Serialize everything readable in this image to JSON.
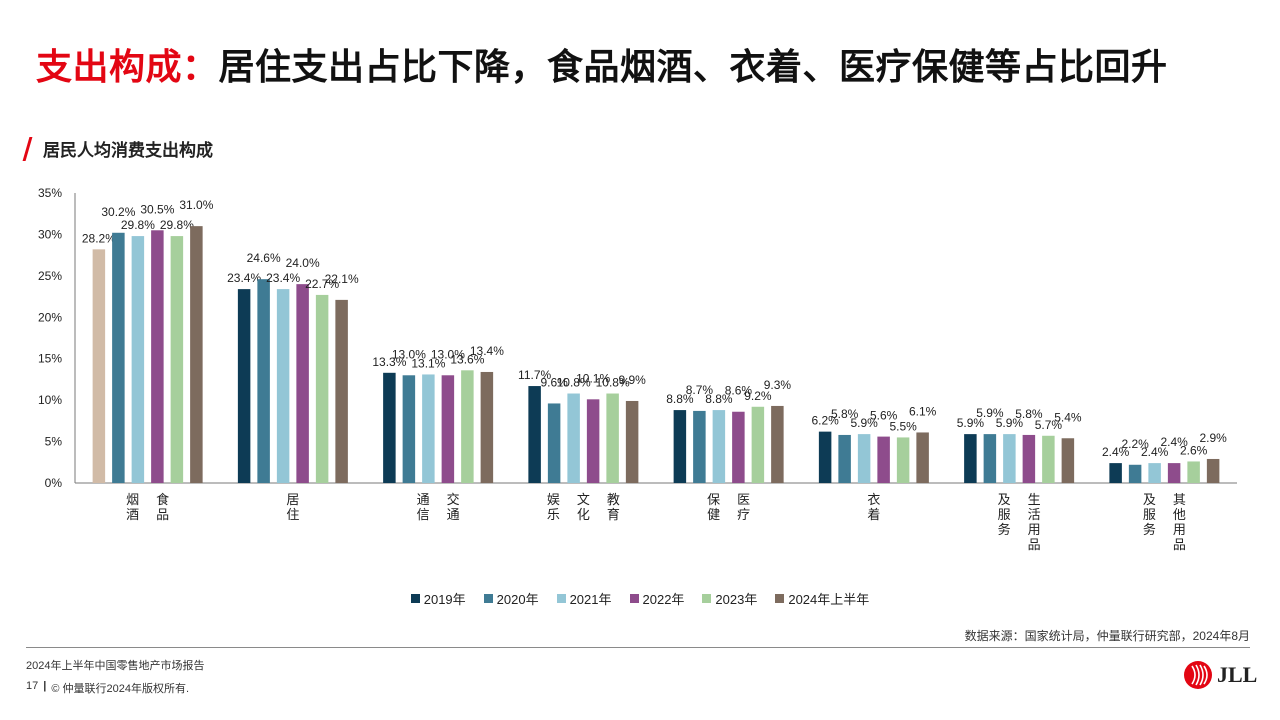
{
  "slide": {
    "title_highlight": "支出构成：",
    "title_rest": "居住支出占比下降，食品烟酒、衣着、医疗保健等占比回升",
    "chart_heading": "居民人均消费支出构成",
    "source": "数据来源：国家统计局，仲量联行研究部，2024年8月",
    "report_name": "2024年上半年中国零售地产市场报告",
    "page_number": "17",
    "separator": "|",
    "copyright": "© 仲量联行2024年版权所有.",
    "logo_text": "JLL"
  },
  "colors": {
    "title_accent": "#e30613",
    "series": [
      "#0d3b55",
      "#3f7b94",
      "#93c6d6",
      "#8e4c8c",
      "#a6cf9c",
      "#7d6b5e"
    ],
    "first_bar_food": "#d1bba7"
  },
  "chart_data": {
    "type": "bar",
    "title": "居民人均消费支出构成",
    "categories": [
      [
        "食品",
        "烟酒"
      ],
      [
        "居住"
      ],
      [
        "交通",
        "通信"
      ],
      [
        "教育",
        "文化",
        "娱乐"
      ],
      [
        "医疗",
        "保健"
      ],
      [
        "衣着"
      ],
      [
        "生活用品",
        "及服务"
      ],
      [
        "其他用品",
        "及服务"
      ]
    ],
    "series": [
      {
        "name": "2019年",
        "values": [
          28.2,
          23.4,
          13.3,
          11.7,
          8.8,
          6.2,
          5.9,
          2.4
        ],
        "labels": [
          "28.2%",
          "23.4%",
          "13.3%",
          "11.7%",
          "8.8%",
          "6.2%",
          "5.9%",
          "2.4%"
        ]
      },
      {
        "name": "2020年",
        "values": [
          30.2,
          24.6,
          13.0,
          9.6,
          8.7,
          5.8,
          5.9,
          2.2
        ],
        "labels": [
          "30.2%",
          "24.6%",
          "13.0%",
          "9.6%",
          "8.7%",
          "5.8%",
          "5.9%",
          "2.2%"
        ]
      },
      {
        "name": "2021年",
        "values": [
          29.8,
          23.4,
          13.1,
          10.8,
          8.8,
          5.9,
          5.9,
          2.4
        ],
        "labels": [
          "29.8%",
          "23.4%",
          "13.1%",
          "10.8%",
          "8.8%",
          "5.9%",
          "5.9%",
          "2.4%"
        ]
      },
      {
        "name": "2022年",
        "values": [
          30.5,
          24.0,
          13.0,
          10.1,
          8.6,
          5.6,
          5.8,
          2.4
        ],
        "labels": [
          "30.5%",
          "24.0%",
          "13.0%",
          "10.1%",
          "8.6%",
          "5.6%",
          "5.8%",
          "2.4%"
        ]
      },
      {
        "name": "2023年",
        "values": [
          29.8,
          22.7,
          13.6,
          10.8,
          9.2,
          5.5,
          5.7,
          2.6
        ],
        "labels": [
          "29.8%",
          "22.7%",
          "13.6%",
          "10.8%",
          "9.2%",
          "5.5%",
          "5.7%",
          "2.6%"
        ]
      },
      {
        "name": "2024年上半年",
        "values": [
          31.0,
          22.1,
          13.4,
          9.9,
          9.3,
          6.1,
          5.4,
          2.9
        ],
        "labels": [
          "31.0%",
          "22.1%",
          "13.4%",
          "9.9%",
          "9.3%",
          "6.1%",
          "5.4%",
          "2.9%"
        ]
      }
    ],
    "ylim": [
      0,
      35
    ],
    "yticks": [
      "0%",
      "5%",
      "10%",
      "15%",
      "20%",
      "25%",
      "30%",
      "35%"
    ],
    "xlabel": "",
    "ylabel": "",
    "grid": false,
    "legend_position": "bottom"
  }
}
